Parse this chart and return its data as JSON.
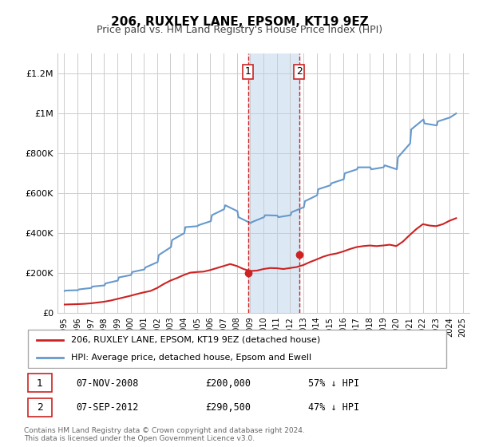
{
  "title": "206, RUXLEY LANE, EPSOM, KT19 9EZ",
  "subtitle": "Price paid vs. HM Land Registry's House Price Index (HPI)",
  "hpi_color": "#6699cc",
  "price_color": "#cc2222",
  "background_color": "#ffffff",
  "grid_color": "#cccccc",
  "highlight_fill": "#dce9f5",
  "dashed_line_color": "#cc2222",
  "ylim": [
    0,
    1300000
  ],
  "yticks": [
    0,
    200000,
    400000,
    600000,
    800000,
    1000000,
    1200000
  ],
  "ytick_labels": [
    "£0",
    "£200K",
    "£400K",
    "£600K",
    "£800K",
    "£1M",
    "£1.2M"
  ],
  "sale1_date": 2008.85,
  "sale1_price": 200000,
  "sale2_date": 2012.68,
  "sale2_price": 290500,
  "legend_label1": "206, RUXLEY LANE, EPSOM, KT19 9EZ (detached house)",
  "legend_label2": "HPI: Average price, detached house, Epsom and Ewell",
  "annotation1": [
    "1",
    "07-NOV-2008",
    "£200,000",
    "57% ↓ HPI"
  ],
  "annotation2": [
    "2",
    "07-SEP-2012",
    "£290,500",
    "47% ↓ HPI"
  ],
  "footer": "Contains HM Land Registry data © Crown copyright and database right 2024.\nThis data is licensed under the Open Government Licence v3.0.",
  "hpi_years": [
    1995.04,
    1995.12,
    1996.04,
    1996.12,
    1997.04,
    1997.12,
    1998.04,
    1998.12,
    1999.04,
    1999.12,
    2000.04,
    2000.12,
    2001.04,
    2001.12,
    2002.04,
    2002.12,
    2003.04,
    2003.12,
    2004.04,
    2004.12,
    2005.04,
    2005.12,
    2006.04,
    2006.12,
    2007.04,
    2007.12,
    2008.04,
    2008.12,
    2009.04,
    2009.12,
    2010.04,
    2010.12,
    2011.04,
    2011.12,
    2012.04,
    2012.12,
    2013.04,
    2013.12,
    2014.04,
    2014.12,
    2015.04,
    2015.12,
    2016.04,
    2016.12,
    2017.04,
    2017.12,
    2018.04,
    2018.12,
    2019.04,
    2019.12,
    2020.04,
    2020.12,
    2021.04,
    2021.12,
    2022.04,
    2022.12,
    2023.04,
    2023.12,
    2024.04,
    2024.5
  ],
  "hpi_values": [
    110000,
    112000,
    114000,
    118000,
    125000,
    132000,
    138000,
    148000,
    162000,
    178000,
    190000,
    205000,
    218000,
    228000,
    255000,
    290000,
    330000,
    365000,
    400000,
    430000,
    435000,
    440000,
    460000,
    490000,
    520000,
    540000,
    510000,
    480000,
    450000,
    455000,
    480000,
    490000,
    488000,
    480000,
    490000,
    505000,
    530000,
    560000,
    590000,
    620000,
    640000,
    650000,
    670000,
    700000,
    720000,
    730000,
    730000,
    720000,
    730000,
    740000,
    720000,
    780000,
    850000,
    920000,
    970000,
    950000,
    940000,
    960000,
    980000,
    1000000
  ],
  "price_years": [
    1995.04,
    1995.5,
    1996.0,
    1996.5,
    1997.0,
    1997.5,
    1998.0,
    1998.5,
    1999.0,
    1999.5,
    2000.0,
    2000.5,
    2001.0,
    2001.5,
    2002.0,
    2002.5,
    2003.0,
    2003.5,
    2004.0,
    2004.5,
    2005.0,
    2005.5,
    2006.0,
    2006.5,
    2007.0,
    2007.5,
    2008.0,
    2008.5,
    2009.0,
    2009.5,
    2010.0,
    2010.5,
    2011.0,
    2011.5,
    2012.0,
    2012.5,
    2013.0,
    2013.5,
    2014.0,
    2014.5,
    2015.0,
    2015.5,
    2016.0,
    2016.5,
    2017.0,
    2017.5,
    2018.0,
    2018.5,
    2019.0,
    2019.5,
    2020.0,
    2020.5,
    2021.0,
    2021.5,
    2022.0,
    2022.5,
    2023.0,
    2023.5,
    2024.0,
    2024.5
  ],
  "price_values": [
    42000,
    43000,
    44000,
    45500,
    48000,
    52000,
    56000,
    62000,
    70000,
    78000,
    86000,
    95000,
    103000,
    110000,
    125000,
    145000,
    162000,
    175000,
    190000,
    202000,
    205000,
    207000,
    215000,
    225000,
    235000,
    245000,
    235000,
    220000,
    210000,
    212000,
    220000,
    225000,
    224000,
    220000,
    225000,
    230000,
    240000,
    255000,
    268000,
    282000,
    292000,
    298000,
    308000,
    320000,
    330000,
    335000,
    338000,
    335000,
    338000,
    342000,
    335000,
    358000,
    390000,
    420000,
    445000,
    438000,
    435000,
    445000,
    462000,
    475000
  ],
  "xlim": [
    1994.5,
    2025.5
  ],
  "xtick_years": [
    1995,
    1996,
    1997,
    1998,
    1999,
    2000,
    2001,
    2002,
    2003,
    2004,
    2005,
    2006,
    2007,
    2008,
    2009,
    2010,
    2011,
    2012,
    2013,
    2014,
    2015,
    2016,
    2017,
    2018,
    2019,
    2020,
    2021,
    2022,
    2023,
    2024,
    2025
  ]
}
